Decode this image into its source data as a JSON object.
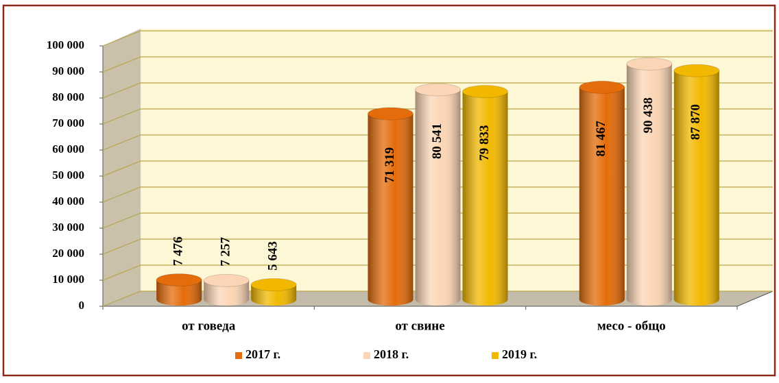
{
  "chart_data": {
    "type": "bar",
    "categories": [
      "от говеда",
      "от свине",
      "месо - общо"
    ],
    "series": [
      {
        "name": "2017 г.",
        "color": "#e46c0a",
        "values": [
          7476,
          71319,
          81467
        ],
        "value_labels": [
          "7 476",
          "71 319",
          "81 467"
        ]
      },
      {
        "name": "2018 г.",
        "color": "#fbd5b5",
        "values": [
          7257,
          80541,
          90438
        ],
        "value_labels": [
          "7 257",
          "80 541",
          "90 438"
        ]
      },
      {
        "name": "2019 г.",
        "color": "#f2b800",
        "values": [
          5643,
          79833,
          87870
        ],
        "value_labels": [
          "5 643",
          "79 833",
          "87 870"
        ]
      }
    ],
    "ylim": [
      0,
      100000
    ],
    "yticks": [
      0,
      {
        "value": 10000,
        "label": "10 000"
      },
      {
        "value": 20000,
        "label": "20 000"
      },
      {
        "value": 30000,
        "label": "30 000"
      },
      {
        "value": 40000,
        "label": "40 000"
      },
      {
        "value": 50000,
        "label": "50 000"
      },
      {
        "value": 60000,
        "label": "60 000"
      },
      {
        "value": 70000,
        "label": "70 000"
      },
      {
        "value": 80000,
        "label": "80 000"
      },
      {
        "value": 90000,
        "label": "90 000"
      },
      {
        "value": 100000,
        "label": "100 000"
      }
    ],
    "grid": true,
    "legend": "bottom"
  }
}
